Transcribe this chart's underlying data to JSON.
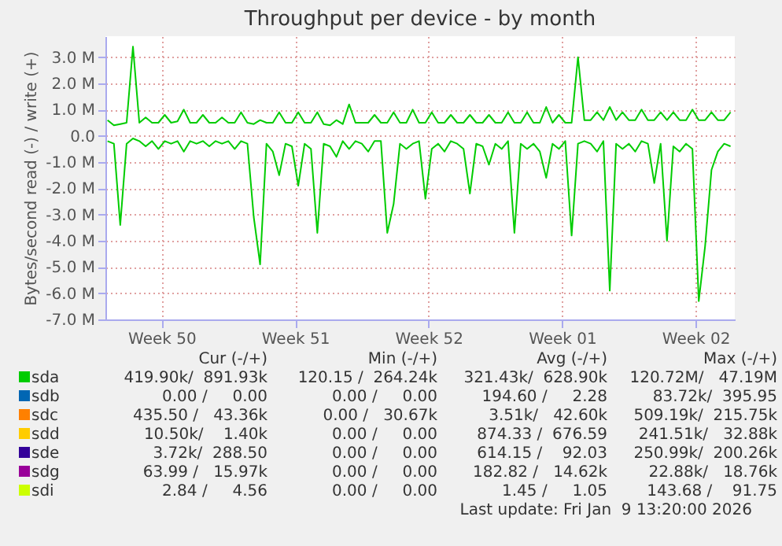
{
  "chart_data": {
    "type": "line",
    "title": "Throughput per device - by month",
    "ylabel": "Bytes/second read (-) / write (+)",
    "x": [
      "2025-12-07T16:00",
      "2025-12-08T00:00",
      "2025-12-08T08:00",
      "2025-12-08T16:00",
      "2025-12-09T00:00",
      "2025-12-09T08:00",
      "2025-12-09T16:00",
      "2025-12-10T00:00",
      "2025-12-10T08:00",
      "2025-12-10T16:00",
      "2025-12-11T00:00",
      "2025-12-11T08:00",
      "2025-12-11T16:00",
      "2025-12-12T00:00",
      "2025-12-12T08:00",
      "2025-12-12T16:00",
      "2025-12-13T00:00",
      "2025-12-13T08:00",
      "2025-12-13T16:00",
      "2025-12-14T00:00",
      "2025-12-14T08:00",
      "2025-12-14T16:00",
      "2025-12-15T00:00",
      "2025-12-15T08:00",
      "2025-12-15T16:00",
      "2025-12-16T00:00",
      "2025-12-16T08:00",
      "2025-12-16T16:00",
      "2025-12-17T00:00",
      "2025-12-17T08:00",
      "2025-12-17T16:00",
      "2025-12-18T00:00",
      "2025-12-18T08:00",
      "2025-12-18T16:00",
      "2025-12-19T00:00",
      "2025-12-19T08:00",
      "2025-12-19T16:00",
      "2025-12-20T00:00",
      "2025-12-20T08:00",
      "2025-12-20T16:00",
      "2025-12-21T00:00",
      "2025-12-21T08:00",
      "2025-12-21T16:00",
      "2025-12-22T00:00",
      "2025-12-22T08:00",
      "2025-12-22T16:00",
      "2025-12-23T00:00",
      "2025-12-23T08:00",
      "2025-12-23T16:00",
      "2025-12-24T00:00",
      "2025-12-24T08:00",
      "2025-12-24T16:00",
      "2025-12-25T00:00",
      "2025-12-25T08:00",
      "2025-12-25T16:00",
      "2025-12-26T00:00",
      "2025-12-26T08:00",
      "2025-12-26T16:00",
      "2025-12-27T00:00",
      "2025-12-27T08:00",
      "2025-12-27T16:00",
      "2025-12-28T00:00",
      "2025-12-28T08:00",
      "2025-12-28T16:00",
      "2025-12-29T00:00",
      "2025-12-29T08:00",
      "2025-12-29T16:00",
      "2025-12-30T00:00",
      "2025-12-30T08:00",
      "2025-12-30T16:00",
      "2025-12-31T00:00",
      "2025-12-31T08:00",
      "2025-12-31T16:00",
      "2026-01-01T00:00",
      "2026-01-01T08:00",
      "2026-01-01T16:00",
      "2026-01-02T00:00",
      "2026-01-02T08:00",
      "2026-01-02T16:00",
      "2026-01-03T00:00",
      "2026-01-03T08:00",
      "2026-01-03T16:00",
      "2026-01-04T00:00",
      "2026-01-04T08:00",
      "2026-01-04T16:00",
      "2026-01-05T00:00",
      "2026-01-05T08:00",
      "2026-01-05T16:00",
      "2026-01-06T00:00",
      "2026-01-06T08:00",
      "2026-01-06T16:00",
      "2026-01-07T00:00",
      "2026-01-07T08:00",
      "2026-01-07T16:00",
      "2026-01-08T00:00",
      "2026-01-08T08:00",
      "2026-01-08T16:00",
      "2026-01-09T00:00",
      "2026-01-09T08:00"
    ],
    "series": [
      {
        "name": "sdb",
        "color": "#0066b3",
        "values": [
          null,
          null,
          null,
          null,
          null,
          null,
          null,
          null,
          null,
          null,
          null,
          null,
          null,
          null,
          null,
          null,
          null,
          null,
          null,
          null,
          null,
          null,
          null,
          null,
          null,
          null,
          null,
          null,
          null,
          null,
          null,
          null,
          null,
          null,
          null,
          null,
          null,
          null,
          null,
          null,
          null,
          null,
          null,
          null,
          null,
          null,
          null,
          null,
          null,
          null,
          null,
          null,
          null,
          null,
          null,
          null,
          null,
          null,
          null,
          null,
          null,
          null,
          null,
          null,
          null,
          null,
          null,
          null,
          null,
          null,
          null,
          null,
          null,
          null,
          null,
          null,
          null,
          null,
          null,
          null,
          null,
          null,
          null,
          null,
          null,
          null,
          null,
          null,
          null,
          null,
          null,
          null,
          null,
          null,
          null,
          null,
          null,
          null,
          null
        ]
      },
      {
        "name": "sdc",
        "color": "#ff8000",
        "values": [
          null,
          null,
          null,
          null,
          null,
          null,
          null,
          null,
          null,
          null,
          null,
          null,
          null,
          null,
          null,
          null,
          null,
          null,
          null,
          null,
          null,
          null,
          null,
          null,
          null,
          null,
          null,
          null,
          null,
          null,
          null,
          null,
          null,
          null,
          null,
          null,
          null,
          null,
          null,
          null,
          null,
          null,
          null,
          null,
          null,
          null,
          null,
          null,
          null,
          null,
          null,
          null,
          null,
          null,
          null,
          null,
          null,
          null,
          null,
          null,
          null,
          null,
          null,
          null,
          null,
          null,
          null,
          null,
          null,
          null,
          null,
          null,
          null,
          null,
          null,
          null,
          null,
          null,
          null,
          null,
          null,
          null,
          null,
          null,
          null,
          null,
          null,
          null,
          null,
          null,
          null,
          null,
          null,
          null,
          null,
          null,
          null,
          null,
          null
        ]
      },
      {
        "name": "sdd",
        "color": "#ffcc00",
        "values": [
          null,
          null,
          null,
          null,
          null,
          null,
          null,
          null,
          null,
          null,
          null,
          null,
          null,
          null,
          null,
          null,
          null,
          null,
          null,
          null,
          null,
          null,
          null,
          null,
          null,
          null,
          null,
          null,
          null,
          null,
          null,
          null,
          null,
          null,
          null,
          null,
          null,
          null,
          null,
          null,
          null,
          null,
          null,
          null,
          null,
          null,
          null,
          null,
          null,
          null,
          null,
          null,
          null,
          null,
          null,
          null,
          null,
          null,
          null,
          null,
          null,
          null,
          null,
          null,
          null,
          null,
          null,
          null,
          null,
          null,
          null,
          null,
          null,
          null,
          null,
          null,
          null,
          null,
          null,
          null,
          null,
          null,
          null,
          null,
          null,
          null,
          null,
          null,
          null,
          null,
          null,
          null,
          null,
          null,
          null,
          null,
          null,
          null,
          null
        ]
      },
      {
        "name": "sde",
        "color": "#330099",
        "values": [
          null,
          null,
          null,
          null,
          null,
          null,
          null,
          null,
          null,
          null,
          null,
          null,
          null,
          null,
          null,
          null,
          null,
          null,
          null,
          null,
          null,
          null,
          null,
          null,
          null,
          null,
          null,
          null,
          null,
          null,
          null,
          null,
          null,
          null,
          null,
          null,
          null,
          null,
          null,
          null,
          null,
          null,
          null,
          null,
          null,
          null,
          null,
          null,
          null,
          null,
          null,
          null,
          null,
          null,
          null,
          null,
          null,
          null,
          null,
          null,
          null,
          null,
          null,
          null,
          null,
          null,
          null,
          null,
          null,
          null,
          null,
          null,
          null,
          null,
          null,
          null,
          null,
          null,
          null,
          null,
          null,
          null,
          null,
          null,
          null,
          null,
          null,
          null,
          null,
          null,
          null,
          null,
          null,
          null,
          null,
          null,
          null,
          null,
          null
        ]
      },
      {
        "name": "sdg",
        "color": "#990099",
        "values": [
          null,
          null,
          null,
          null,
          null,
          null,
          null,
          null,
          null,
          null,
          null,
          null,
          null,
          null,
          null,
          null,
          null,
          null,
          null,
          null,
          null,
          null,
          null,
          null,
          null,
          null,
          null,
          null,
          null,
          null,
          null,
          null,
          null,
          null,
          null,
          null,
          null,
          null,
          null,
          null,
          null,
          null,
          null,
          null,
          null,
          null,
          null,
          null,
          null,
          null,
          null,
          null,
          null,
          null,
          null,
          null,
          null,
          null,
          null,
          null,
          null,
          null,
          null,
          null,
          null,
          null,
          null,
          null,
          null,
          null,
          null,
          null,
          null,
          null,
          null,
          null,
          null,
          null,
          null,
          null,
          null,
          null,
          null,
          null,
          null,
          null,
          null,
          null,
          null,
          null,
          null,
          null,
          null,
          null,
          null,
          null,
          null,
          null,
          null
        ]
      },
      {
        "name": "sdi",
        "color": "#ccff00",
        "values": [
          null,
          null,
          null,
          null,
          null,
          null,
          null,
          null,
          null,
          null,
          null,
          null,
          null,
          null,
          null,
          null,
          null,
          null,
          null,
          null,
          null,
          null,
          null,
          null,
          null,
          null,
          null,
          null,
          null,
          null,
          null,
          null,
          null,
          null,
          null,
          null,
          null,
          null,
          null,
          null,
          null,
          null,
          null,
          null,
          null,
          null,
          null,
          null,
          null,
          null,
          null,
          null,
          null,
          null,
          null,
          null,
          null,
          null,
          null,
          null,
          null,
          null,
          null,
          null,
          null,
          null,
          null,
          null,
          null,
          null,
          null,
          null,
          null,
          null,
          null,
          null,
          null,
          null,
          null,
          null,
          null,
          null,
          null,
          null,
          null,
          null,
          null,
          null,
          null,
          null,
          null,
          null,
          null,
          null,
          null,
          null,
          null,
          null,
          null
        ]
      },
      {
        "name": "sda",
        "color": "#00cc00",
        "values": [
          600000,
          400000,
          450000,
          500000,
          3400000,
          500000,
          700000,
          500000,
          500000,
          800000,
          500000,
          550000,
          1000000,
          500000,
          500000,
          800000,
          500000,
          500000,
          700000,
          500000,
          500000,
          900000,
          500000,
          450000,
          600000,
          500000,
          500000,
          900000,
          500000,
          500000,
          900000,
          500000,
          500000,
          900000,
          450000,
          400000,
          600000,
          450000,
          1200000,
          500000,
          500000,
          500000,
          800000,
          500000,
          500000,
          900000,
          500000,
          500000,
          1000000,
          500000,
          500000,
          900000,
          500000,
          500000,
          800000,
          500000,
          500000,
          800000,
          500000,
          500000,
          800000,
          500000,
          500000,
          900000,
          500000,
          500000,
          900000,
          500000,
          500000,
          1100000,
          500000,
          800000,
          500000,
          500000,
          3000000,
          600000,
          600000,
          900000,
          600000,
          1100000,
          600000,
          900000,
          600000,
          600000,
          1000000,
          600000,
          600000,
          900000,
          600000,
          900000,
          600000,
          600000,
          1000000,
          600000,
          600000,
          900000,
          600000,
          600000,
          900000
        ]
      },
      {
        "color": "#00cc00",
        "values": [
          -200000,
          -300000,
          -3400000,
          -300000,
          -100000,
          -200000,
          -400000,
          -200000,
          -500000,
          -200000,
          -300000,
          -200000,
          -600000,
          -200000,
          -300000,
          -200000,
          -400000,
          -200000,
          -300000,
          -200000,
          -500000,
          -200000,
          -300000,
          -3100000,
          -4900000,
          -300000,
          -600000,
          -1500000,
          -300000,
          -400000,
          -1900000,
          -300000,
          -500000,
          -3700000,
          -300000,
          -400000,
          -800000,
          -200000,
          -500000,
          -200000,
          -300000,
          -600000,
          -200000,
          -200000,
          -3700000,
          -2600000,
          -300000,
          -500000,
          -300000,
          -200000,
          -2400000,
          -500000,
          -300000,
          -600000,
          -200000,
          -300000,
          -500000,
          -2200000,
          -300000,
          -400000,
          -1100000,
          -300000,
          -500000,
          -200000,
          -3700000,
          -300000,
          -500000,
          -300000,
          -600000,
          -1600000,
          -300000,
          -500000,
          -200000,
          -3800000,
          -300000,
          -200000,
          -300000,
          -600000,
          -200000,
          -5900000,
          -300000,
          -500000,
          -300000,
          -600000,
          -200000,
          -300000,
          -1800000,
          -300000,
          -4000000,
          -400000,
          -600000,
          -300000,
          -500000,
          -6300000,
          -4200000,
          -1300000,
          -600000,
          -300000,
          -400000
        ]
      }
    ],
    "xlim": [
      "2025-12-07T13:20",
      "2026-01-09T13:20"
    ],
    "xticks": [
      {
        "value": "2025-12-10T12:00",
        "label": "Week 50"
      },
      {
        "value": "2025-12-17T12:00",
        "label": "Week 51"
      },
      {
        "value": "2025-12-24T12:00",
        "label": "Week 52"
      },
      {
        "value": "2025-12-31T12:00",
        "label": "Week 01"
      },
      {
        "value": "2026-01-07T12:00",
        "label": "Week 02"
      }
    ],
    "ylim": [
      -7000000,
      3800000
    ],
    "yticks": [
      {
        "value": -7000000,
        "label": "-7.0 M"
      },
      {
        "value": -6000000,
        "label": "-6.0 M"
      },
      {
        "value": -5000000,
        "label": "-5.0 M"
      },
      {
        "value": -4000000,
        "label": "-4.0 M"
      },
      {
        "value": -3000000,
        "label": "-3.0 M"
      },
      {
        "value": -2000000,
        "label": "-2.0 M"
      },
      {
        "value": -1000000,
        "label": "-1.0 M"
      },
      {
        "value": 0,
        "label": "0.0"
      },
      {
        "value": 1000000,
        "label": "1.0 M"
      },
      {
        "value": 2000000,
        "label": "2.0 M"
      },
      {
        "value": 3000000,
        "label": "3.0 M"
      }
    ],
    "grid": true,
    "legend": "bottom",
    "annotations": [
      "Cur (-/+)",
      "Min (-/+)",
      "Avg (-/+)",
      "Max (-/+)",
      "419.90k/  891.93k",
      "120.15 /  264.24k",
      "321.43k/  628.90k",
      "120.72M/   47.19M",
      "0.00 /     0.00",
      "0.00 /     0.00",
      "194.60 /     2.28",
      "83.72k/  395.95",
      "435.50 /   43.36k",
      "0.00 /   30.67k",
      "3.51k/   42.60k",
      "509.19k/  215.75k",
      "10.50k/    1.40k",
      "0.00 /     0.00",
      "874.33 /  676.59",
      "241.51k/   32.88k",
      "3.72k/  288.50",
      "0.00 /     0.00",
      "614.15 /    92.03",
      "250.99k/  200.26k",
      "63.99 /   15.97k",
      "0.00 /     0.00",
      "182.82 /   14.62k",
      "22.88k/   18.76k",
      "2.84 /     4.56",
      "0.00 /     0.00",
      "1.45 /     1.05",
      "143.68 /    91.75",
      "Last update: Fri Jan  9 13:20:00 2026"
    ]
  }
}
